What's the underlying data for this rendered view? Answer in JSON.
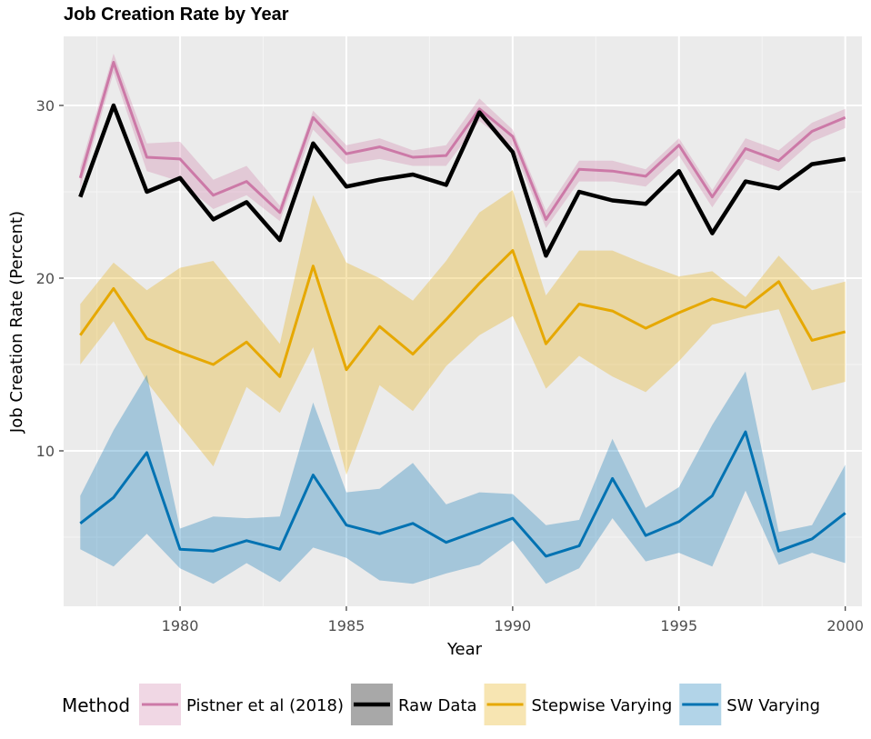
{
  "chart_data": {
    "type": "line",
    "title": "Job Creation Rate by Year",
    "xlabel": "Year",
    "ylabel": "Job Creation Rate (Percent)",
    "xlim": [
      1976.5,
      2000.5
    ],
    "ylim": [
      1.0,
      34.0
    ],
    "x_ticks": [
      1980,
      1985,
      1990,
      1995,
      2000
    ],
    "x_tick_labels": [
      "1980",
      "1985",
      "1990",
      "1995",
      "2000"
    ],
    "y_ticks": [
      10,
      20,
      30
    ],
    "y_tick_labels": [
      "10",
      "20",
      "30"
    ],
    "grid": true,
    "legend": {
      "title": "Method",
      "position": "bottom"
    },
    "x": [
      1977,
      1978,
      1979,
      1980,
      1981,
      1982,
      1983,
      1984,
      1985,
      1986,
      1987,
      1988,
      1989,
      1990,
      1991,
      1992,
      1993,
      1994,
      1995,
      1996,
      1997,
      1998,
      1999,
      2000
    ],
    "series": [
      {
        "name": "Pistner et al (2018)",
        "color": "#cc79a7",
        "values": [
          25.8,
          32.5,
          27.0,
          26.9,
          24.8,
          25.6,
          23.8,
          29.3,
          27.2,
          27.6,
          27.0,
          27.1,
          29.8,
          28.2,
          23.4,
          26.3,
          26.2,
          25.9,
          27.7,
          24.7,
          27.5,
          26.8,
          28.5,
          29.3
        ],
        "lower": [
          25.2,
          31.9,
          26.2,
          25.6,
          24.0,
          24.8,
          23.3,
          28.6,
          26.6,
          26.9,
          26.5,
          26.5,
          29.1,
          27.6,
          22.9,
          25.6,
          25.6,
          25.3,
          27.1,
          24.1,
          26.9,
          26.2,
          27.9,
          28.7
        ],
        "upper": [
          26.4,
          33.0,
          27.8,
          27.9,
          25.7,
          26.5,
          24.2,
          29.7,
          27.7,
          28.1,
          27.4,
          27.7,
          30.4,
          28.6,
          23.9,
          26.8,
          26.8,
          26.3,
          28.1,
          25.1,
          28.1,
          27.4,
          29.0,
          29.8
        ]
      },
      {
        "name": "Raw Data",
        "color": "#000000",
        "values": [
          24.7,
          30.0,
          25.0,
          25.8,
          23.4,
          24.4,
          22.2,
          27.8,
          25.3,
          25.7,
          26.0,
          25.4,
          29.6,
          27.3,
          21.3,
          25.0,
          24.5,
          24.3,
          26.2,
          22.6,
          25.6,
          25.2,
          26.6,
          26.9
        ]
      },
      {
        "name": "Stepwise Varying",
        "color": "#e6a800",
        "values": [
          16.7,
          19.4,
          16.5,
          15.7,
          15.0,
          16.3,
          14.3,
          20.7,
          14.7,
          17.2,
          15.6,
          17.6,
          19.7,
          21.6,
          16.2,
          18.5,
          18.1,
          17.1,
          18.0,
          18.8,
          18.3,
          19.8,
          16.4,
          16.9
        ],
        "lower": [
          15.0,
          17.5,
          14.0,
          11.5,
          9.1,
          13.7,
          12.2,
          16.0,
          8.6,
          13.8,
          12.3,
          14.9,
          16.7,
          17.8,
          13.6,
          15.5,
          14.3,
          13.4,
          15.2,
          17.3,
          17.8,
          18.2,
          13.5,
          14.0
        ],
        "upper": [
          18.5,
          20.9,
          19.3,
          20.6,
          21.0,
          18.6,
          16.2,
          24.8,
          20.9,
          20.0,
          18.7,
          21.0,
          23.8,
          25.1,
          19.0,
          21.6,
          21.6,
          20.8,
          20.1,
          20.4,
          18.9,
          21.3,
          19.3,
          19.8
        ]
      },
      {
        "name": "SW Varying",
        "color": "#0072b2",
        "values": [
          5.8,
          7.3,
          9.9,
          4.3,
          4.2,
          4.8,
          4.3,
          8.6,
          5.7,
          5.2,
          5.8,
          4.7,
          5.4,
          6.1,
          3.9,
          4.5,
          8.4,
          5.1,
          5.9,
          7.4,
          11.1,
          4.2,
          4.9,
          6.4
        ],
        "lower": [
          4.3,
          3.3,
          5.2,
          3.2,
          2.3,
          3.5,
          2.4,
          4.4,
          3.8,
          2.5,
          2.3,
          2.9,
          3.4,
          4.8,
          2.3,
          3.2,
          6.1,
          3.6,
          4.1,
          3.3,
          7.7,
          3.4,
          4.1,
          3.5
        ],
        "upper": [
          7.4,
          11.2,
          14.4,
          5.5,
          6.2,
          6.1,
          6.2,
          12.8,
          7.6,
          7.8,
          9.3,
          6.9,
          7.6,
          7.5,
          5.7,
          6.0,
          10.7,
          6.7,
          7.9,
          11.5,
          14.6,
          5.3,
          5.7,
          9.2
        ]
      }
    ]
  }
}
